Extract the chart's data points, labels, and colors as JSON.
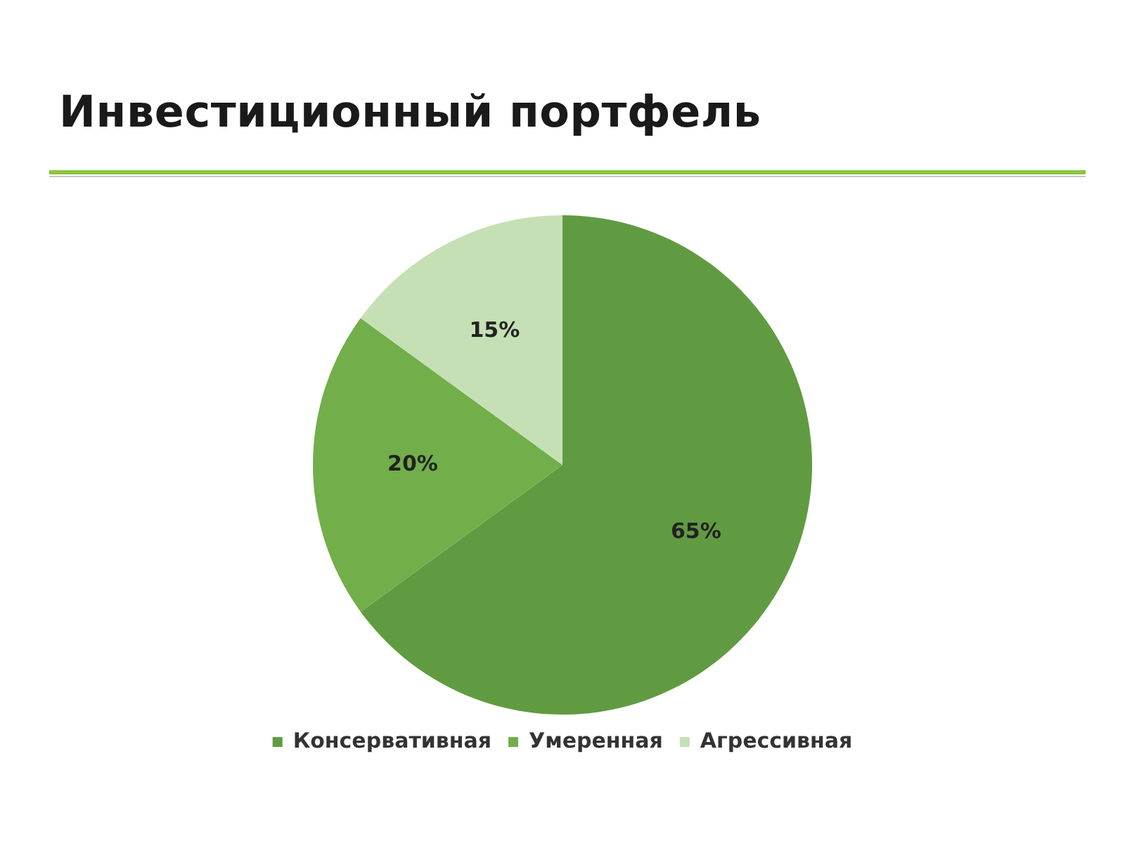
{
  "chart_data": {
    "type": "pie",
    "title": "Инвестиционный портфель",
    "categories": [
      "Консервативная",
      "Умеренная",
      "Агрессивная"
    ],
    "values": [
      65,
      20,
      15
    ],
    "colors": [
      "#619b41",
      "#72ae4a",
      "#c6e0b5"
    ],
    "value_labels": [
      "65%",
      "20%",
      "15%"
    ],
    "legend": "bottom"
  }
}
